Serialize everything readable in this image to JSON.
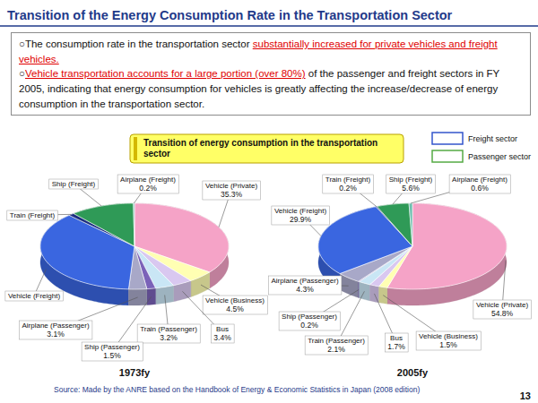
{
  "page": {
    "title": "Transition of the Energy Consumption Rate in the Transportation Sector",
    "bullets": [
      [
        {
          "text": "○The consumption rate in the transportation sector "
        },
        {
          "text": "substantially increased for private vehicles and   freight vehicles.",
          "highlight": true
        }
      ],
      [
        {
          "text": "○"
        },
        {
          "text": "Vehicle transportation accounts for a large portion (over 80%)",
          "highlight": true
        },
        {
          "text": " of the passenger and freight sectors in FY 2005, indicating that energy consumption for vehicles is greatly affecting the increase/decrease of energy consumption in the transportation sector."
        }
      ]
    ],
    "chart_heading": "Transition of energy consumption in the transportation sector",
    "sectors": [
      {
        "name": "Freight sector",
        "color": "#3355cc"
      },
      {
        "name": "Passenger sector",
        "color": "#55aa44"
      }
    ],
    "source": "Source: Made by the ANRE based on the Handbook of Energy & Economic Statistics in Japan (2008 edition)",
    "page_number": 13
  },
  "chart_data": [
    {
      "type": "pie",
      "title": "1973fy",
      "categories": [
        "Vehicle (Private)",
        "Vehicle (Business)",
        "Bus",
        "Train (Passenger)",
        "Ship (Passenger)",
        "Airplane (Passenger)",
        "Vehicle (Freight)",
        "Train (Freight)",
        "Ship (Freight)",
        "Airplane (Freight)"
      ],
      "values": [
        35.3,
        4.5,
        3.4,
        3.2,
        1.5,
        3.1,
        36.8,
        1.0,
        11.0,
        0.2
      ],
      "value_labels": [
        "35.3%",
        "4.5%",
        "3.4%",
        "3.2%",
        "1.5%",
        "3.1%",
        null,
        null,
        null,
        "0.2%"
      ],
      "colors": [
        "#f5a3c7",
        "#ffffb3",
        "#d9c8f0",
        "#c9e6f5",
        "#7a62b8",
        "#a8a8c8",
        "#3a66e0",
        "#1c2d80",
        "#2f9a57",
        "#6fc0b0"
      ],
      "data_labels": true
    },
    {
      "type": "pie",
      "title": "2005fy",
      "categories": [
        "Vehicle (Private)",
        "Vehicle (Business)",
        "Bus",
        "Train (Passenger)",
        "Ship (Passenger)",
        "Airplane (Passenger)",
        "Vehicle (Freight)",
        "Train (Freight)",
        "Ship (Freight)",
        "Airplane (Freight)"
      ],
      "values": [
        54.8,
        1.5,
        1.7,
        2.1,
        0.2,
        4.3,
        29.9,
        0.2,
        5.6,
        0.6
      ],
      "value_labels": [
        "54.8%",
        "1.5%",
        "1.7%",
        "2.1%",
        "0.2%",
        "4.3%",
        "29.9%",
        "0.2%",
        "5.6%",
        "0.6%"
      ],
      "colors": [
        "#f5a3c7",
        "#ffffb3",
        "#d9c8f0",
        "#c9e6f5",
        "#7a62b8",
        "#a8a8c8",
        "#3a66e0",
        "#1c2d80",
        "#2f9a57",
        "#6fc0b0"
      ],
      "data_labels": true
    }
  ]
}
